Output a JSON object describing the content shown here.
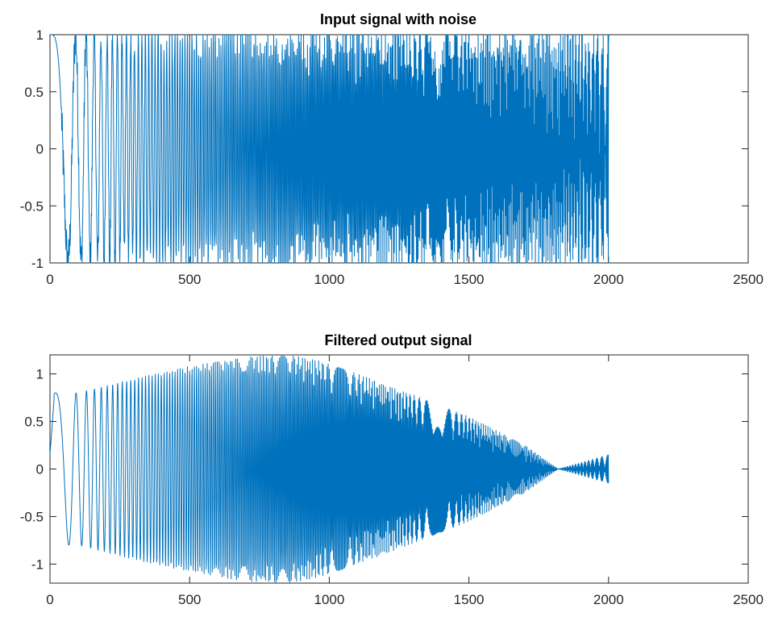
{
  "figure": {
    "background": "#ffffff",
    "line_color": "#0072bd",
    "axis_color": "#262626"
  },
  "chart_data": [
    {
      "type": "line",
      "title": "Input signal with noise",
      "xlabel": "",
      "ylabel": "",
      "xlim": [
        0,
        2500
      ],
      "ylim": [
        -1,
        1
      ],
      "xticks": [
        0,
        500,
        1000,
        1500,
        2000,
        2500
      ],
      "yticks": [
        -1,
        -0.5,
        0,
        0.5,
        1
      ],
      "xtick_labels": [
        "0",
        "500",
        "1000",
        "1500",
        "2000",
        "2500"
      ],
      "ytick_labels": [
        "-1",
        "-0.5",
        "0",
        "0.5",
        "1"
      ],
      "grid": false,
      "series": [
        {
          "description_of_shape": "linear chirp cos(2π·f(n)·n) with added noise, clipped to ±1, over n = 0..2000",
          "x_start": 0,
          "x_end": 2000,
          "amplitude": 1,
          "noise_level": 0.2
        }
      ]
    },
    {
      "type": "line",
      "title": "Filtered output signal",
      "xlabel": "",
      "ylabel": "",
      "xlim": [
        0,
        2500
      ],
      "ylim": [
        -1.2,
        1.2
      ],
      "xticks": [
        0,
        500,
        1000,
        1500,
        2000,
        2500
      ],
      "yticks": [
        -1,
        -0.5,
        0,
        0.5,
        1
      ],
      "xtick_labels": [
        "0",
        "500",
        "1000",
        "1500",
        "2000",
        "2500"
      ],
      "ytick_labels": [
        "-1",
        "-0.5",
        "0",
        "0.5",
        "1"
      ],
      "grid": false,
      "series": [
        {
          "x_start": 0,
          "x_end": 2000,
          "envelope": [
            [
              0,
              0.8
            ],
            [
              100,
              0.8
            ],
            [
              300,
              0.95
            ],
            [
              500,
              1.08
            ],
            [
              700,
              1.18
            ],
            [
              850,
              1.2
            ],
            [
              950,
              1.15
            ],
            [
              1100,
              1.0
            ],
            [
              1300,
              0.78
            ],
            [
              1500,
              0.55
            ],
            [
              1700,
              0.25
            ],
            [
              1820,
              0.0
            ],
            [
              2000,
              0.15
            ]
          ]
        }
      ]
    }
  ]
}
